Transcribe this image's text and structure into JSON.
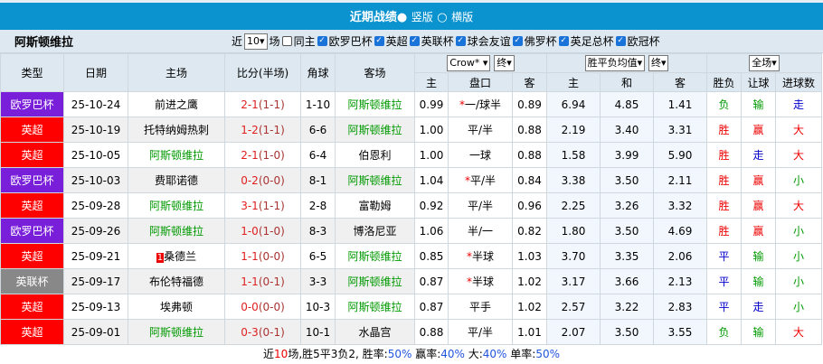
{
  "header": {
    "title": "近期战绩",
    "opt1": "竖版",
    "opt2": "横版"
  },
  "filter": {
    "team": "阿斯顿维拉",
    "near": "近",
    "count": "10",
    "unit": "场",
    "same_home": "同主",
    "leagues": [
      "欧罗巴杯",
      "英超",
      "英联杯",
      "球会友谊",
      "佛罗杯",
      "英足总杯",
      "欧冠杯"
    ]
  },
  "columns": {
    "type": "类型",
    "date": "日期",
    "home": "主场",
    "score": "比分(半场)",
    "corner": "角球",
    "away": "客场",
    "company": "Crow*",
    "final1": "终",
    "odds_type": "胜平负均值",
    "final2": "终",
    "scope": "全场",
    "sub": [
      "主",
      "盘口",
      "客",
      "主",
      "和",
      "客",
      "胜负",
      "让球",
      "进球数"
    ]
  },
  "colors": {
    "europa": "#7a1fd9",
    "premier": "#ff0000",
    "league_cup": "#888888",
    "header": "#0b93cf"
  },
  "rows": [
    {
      "type": "欧罗巴杯",
      "tc": "eu",
      "date": "25-10-24",
      "home": "前进之鹰",
      "hg": false,
      "score": "2-1",
      "ht": "(1-1)",
      "corner": "1-10",
      "away": "阿斯顿维拉",
      "ag": true,
      "o1": "0.99",
      "hcp": "一/球半",
      "star": true,
      "o2": "0.89",
      "e1": "6.94",
      "e2": "4.85",
      "e3": "1.41",
      "r": "负",
      "rc": "g",
      "h": "输",
      "hc": "g",
      "ou": "走",
      "oc": "bl"
    },
    {
      "type": "英超",
      "tc": "pl",
      "date": "25-10-19",
      "home": "托特纳姆热刺",
      "hg": false,
      "score": "1-2",
      "ht": "(1-1)",
      "corner": "6-6",
      "away": "阿斯顿维拉",
      "ag": true,
      "o1": "1.00",
      "hcp": "平/半",
      "star": false,
      "o2": "0.88",
      "e1": "2.19",
      "e2": "3.40",
      "e3": "3.31",
      "r": "胜",
      "rc": "rd",
      "h": "赢",
      "hc": "rd",
      "ou": "大",
      "oc": "rd"
    },
    {
      "type": "英超",
      "tc": "pl",
      "date": "25-10-05",
      "home": "阿斯顿维拉",
      "hg": true,
      "score": "2-1",
      "ht": "(1-0)",
      "corner": "6-4",
      "away": "伯恩利",
      "ag": false,
      "o1": "1.00",
      "hcp": "一球",
      "star": false,
      "o2": "0.88",
      "e1": "1.58",
      "e2": "3.99",
      "e3": "5.90",
      "r": "胜",
      "rc": "rd",
      "h": "走",
      "hc": "bl",
      "ou": "大",
      "oc": "rd"
    },
    {
      "type": "欧罗巴杯",
      "tc": "eu",
      "date": "25-10-03",
      "home": "费耶诺德",
      "hg": false,
      "score": "0-2",
      "ht": "(0-0)",
      "corner": "8-1",
      "away": "阿斯顿维拉",
      "ag": true,
      "o1": "1.04",
      "hcp": "平/半",
      "star": true,
      "o2": "0.84",
      "e1": "3.38",
      "e2": "3.50",
      "e3": "2.11",
      "r": "胜",
      "rc": "rd",
      "h": "赢",
      "hc": "rd",
      "ou": "小",
      "oc": "g"
    },
    {
      "type": "英超",
      "tc": "pl",
      "date": "25-09-28",
      "home": "阿斯顿维拉",
      "hg": true,
      "score": "3-1",
      "ht": "(1-1)",
      "corner": "2-8",
      "away": "富勒姆",
      "ag": false,
      "o1": "0.92",
      "hcp": "平/半",
      "star": false,
      "o2": "0.96",
      "e1": "2.25",
      "e2": "3.26",
      "e3": "3.32",
      "r": "胜",
      "rc": "rd",
      "h": "赢",
      "hc": "rd",
      "ou": "大",
      "oc": "rd"
    },
    {
      "type": "欧罗巴杯",
      "tc": "eu",
      "date": "25-09-26",
      "home": "阿斯顿维拉",
      "hg": true,
      "score": "1-0",
      "ht": "(1-0)",
      "corner": "8-3",
      "away": "博洛尼亚",
      "ag": false,
      "o1": "1.06",
      "hcp": "半/一",
      "star": false,
      "o2": "0.82",
      "e1": "1.80",
      "e2": "3.50",
      "e3": "4.69",
      "r": "胜",
      "rc": "rd",
      "h": "赢",
      "hc": "rd",
      "ou": "小",
      "oc": "g"
    },
    {
      "type": "英超",
      "tc": "pl",
      "date": "25-09-21",
      "home": "桑德兰",
      "badge": "1",
      "hg": false,
      "score": "1-1",
      "ht": "(0-0)",
      "corner": "6-5",
      "away": "阿斯顿维拉",
      "ag": true,
      "o1": "0.85",
      "hcp": "半球",
      "star": true,
      "o2": "1.03",
      "e1": "3.70",
      "e2": "3.35",
      "e3": "2.06",
      "r": "平",
      "rc": "bl",
      "h": "输",
      "hc": "g",
      "ou": "小",
      "oc": "g"
    },
    {
      "type": "英联杯",
      "tc": "lc",
      "date": "25-09-17",
      "home": "布伦特福德",
      "hg": false,
      "score": "1-1",
      "ht": "(0-1)",
      "corner": "3-3",
      "away": "阿斯顿维拉",
      "ag": true,
      "o1": "0.87",
      "hcp": "半球",
      "star": true,
      "o2": "1.02",
      "e1": "3.17",
      "e2": "3.66",
      "e3": "2.13",
      "r": "平",
      "rc": "bl",
      "h": "输",
      "hc": "g",
      "ou": "小",
      "oc": "g"
    },
    {
      "type": "英超",
      "tc": "pl",
      "date": "25-09-13",
      "home": "埃弗顿",
      "hg": false,
      "score": "0-0",
      "ht": "(0-0)",
      "corner": "10-3",
      "away": "阿斯顿维拉",
      "ag": true,
      "o1": "0.87",
      "hcp": "平手",
      "star": false,
      "o2": "1.02",
      "e1": "2.57",
      "e2": "3.22",
      "e3": "2.83",
      "r": "平",
      "rc": "bl",
      "h": "走",
      "hc": "bl",
      "ou": "小",
      "oc": "g"
    },
    {
      "type": "英超",
      "tc": "pl",
      "date": "25-09-01",
      "home": "阿斯顿维拉",
      "hg": true,
      "score": "0-3",
      "ht": "(0-1)",
      "corner": "10-1",
      "away": "水晶宫",
      "ag": false,
      "o1": "0.88",
      "hcp": "平/半",
      "star": false,
      "o2": "1.01",
      "e1": "2.07",
      "e2": "3.50",
      "e3": "3.55",
      "r": "负",
      "rc": "g",
      "h": "输",
      "hc": "g",
      "ou": "大",
      "oc": "rd"
    }
  ],
  "footer": {
    "a": "近",
    "n": "10",
    "b": "场,胜5平3负2, 胜率:",
    "win": "50%",
    "c": " 赢率:",
    "hwin": "40%",
    "d": " 大:",
    "over": "40%",
    "e": " 单率:",
    "odd": "50%"
  }
}
